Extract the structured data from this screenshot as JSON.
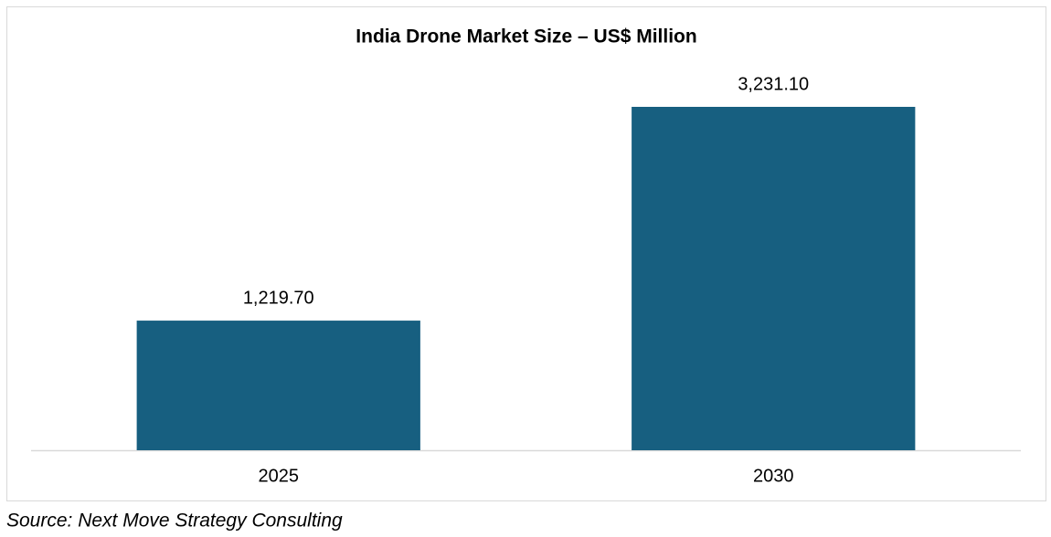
{
  "chart_data": {
    "type": "bar",
    "title": "India Drone Market Size – US$ Million",
    "categories": [
      "2025",
      "2030"
    ],
    "values": [
      1219.7,
      3231.1
    ],
    "value_labels": [
      "1,219.70",
      "3,231.10"
    ],
    "color": "#175f80"
  },
  "source": "Source: Next Move Strategy Consulting"
}
